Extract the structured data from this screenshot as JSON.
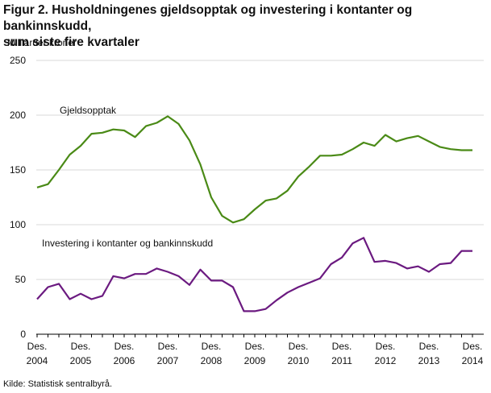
{
  "title_line1": "Figur 2. Husholdningenes gjeldsopptak og investering i kontanter og bankinnskudd,",
  "title_line2": "sum siste fire kvartaler",
  "source": "Kilde: Statistisk sentralbyrå.",
  "chart_data": {
    "type": "line",
    "ylabel": "Milliarder  kroner",
    "ylim": [
      0,
      250
    ],
    "yticks": [
      0,
      50,
      100,
      150,
      200,
      250
    ],
    "xlabel": "",
    "x_tick_labels": [
      {
        "line1": "Des.",
        "line2": "2004",
        "q": 0
      },
      {
        "line1": "Des.",
        "line2": "2005",
        "q": 4
      },
      {
        "line1": "Des.",
        "line2": "2006",
        "q": 8
      },
      {
        "line1": "Des.",
        "line2": "2007",
        "q": 12
      },
      {
        "line1": "Des.",
        "line2": "2008",
        "q": 16
      },
      {
        "line1": "Des.",
        "line2": "2009",
        "q": 20
      },
      {
        "line1": "Des.",
        "line2": "2010",
        "q": 24
      },
      {
        "line1": "Des.",
        "line2": "2011",
        "q": 28
      },
      {
        "line1": "Des.",
        "line2": "2012",
        "q": 32
      },
      {
        "line1": "Des.",
        "line2": "2013",
        "q": 36
      },
      {
        "line1": "Des.",
        "line2": "2014",
        "q": 40
      }
    ],
    "grid": "horizontal",
    "series": [
      {
        "name": "Gjeldsopptak",
        "color": "#4a8a16",
        "values": [
          134,
          137,
          150,
          164,
          172,
          183,
          184,
          187,
          186,
          180,
          190,
          193,
          199,
          192,
          177,
          155,
          125,
          108,
          102,
          105,
          114,
          122,
          124,
          131,
          144,
          153,
          163,
          163,
          164,
          169,
          175,
          172,
          182,
          176,
          179,
          181,
          176,
          171,
          169,
          168,
          168
        ]
      },
      {
        "name": "Investering  i kontanter og bankinnskudd",
        "color": "#6b1a80",
        "values": [
          32,
          43,
          46,
          32,
          37,
          32,
          35,
          53,
          51,
          55,
          55,
          60,
          57,
          53,
          45,
          59,
          49,
          49,
          43,
          21,
          21,
          23,
          31,
          38,
          43,
          47,
          51,
          64,
          70,
          83,
          88,
          66,
          67,
          65,
          60,
          62,
          57,
          64,
          65,
          76,
          76
        ]
      }
    ]
  }
}
